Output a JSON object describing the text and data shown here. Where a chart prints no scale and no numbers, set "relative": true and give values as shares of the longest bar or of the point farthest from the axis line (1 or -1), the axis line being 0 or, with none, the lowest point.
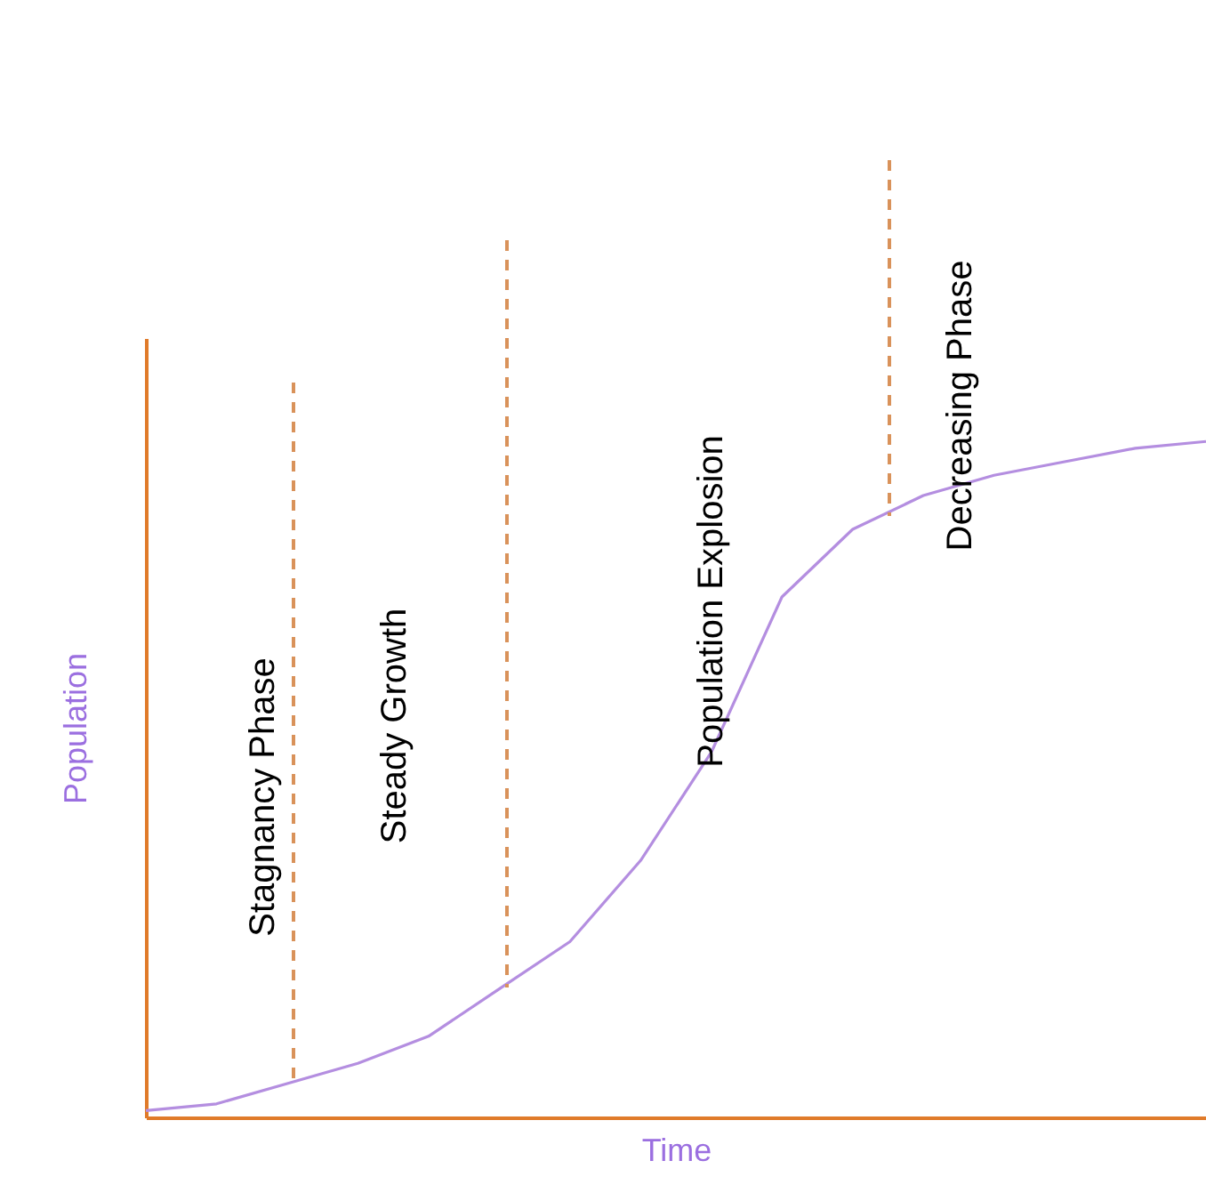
{
  "chart_data": {
    "type": "line",
    "relative": true,
    "xlabel": "Time",
    "ylabel": "Population",
    "categories": [
      null,
      null,
      null,
      null,
      null,
      null,
      null,
      null,
      null,
      null,
      null,
      null,
      null,
      null,
      null,
      null
    ],
    "marker": "none",
    "line_style": "solid",
    "series": [
      {
        "color": "#b48ee0",
        "values": [
          0.01,
          0.02,
          0.05,
          0.08,
          0.12,
          0.19,
          0.26,
          0.38,
          0.54,
          0.77,
          0.87,
          0.92,
          0.95,
          0.97,
          0.99,
          1
        ]
      }
    ],
    "annotations": [
      "Stagnancy Phase",
      "Steady Growth",
      "Population Explosion",
      "Decreasing Phase"
    ]
  }
}
